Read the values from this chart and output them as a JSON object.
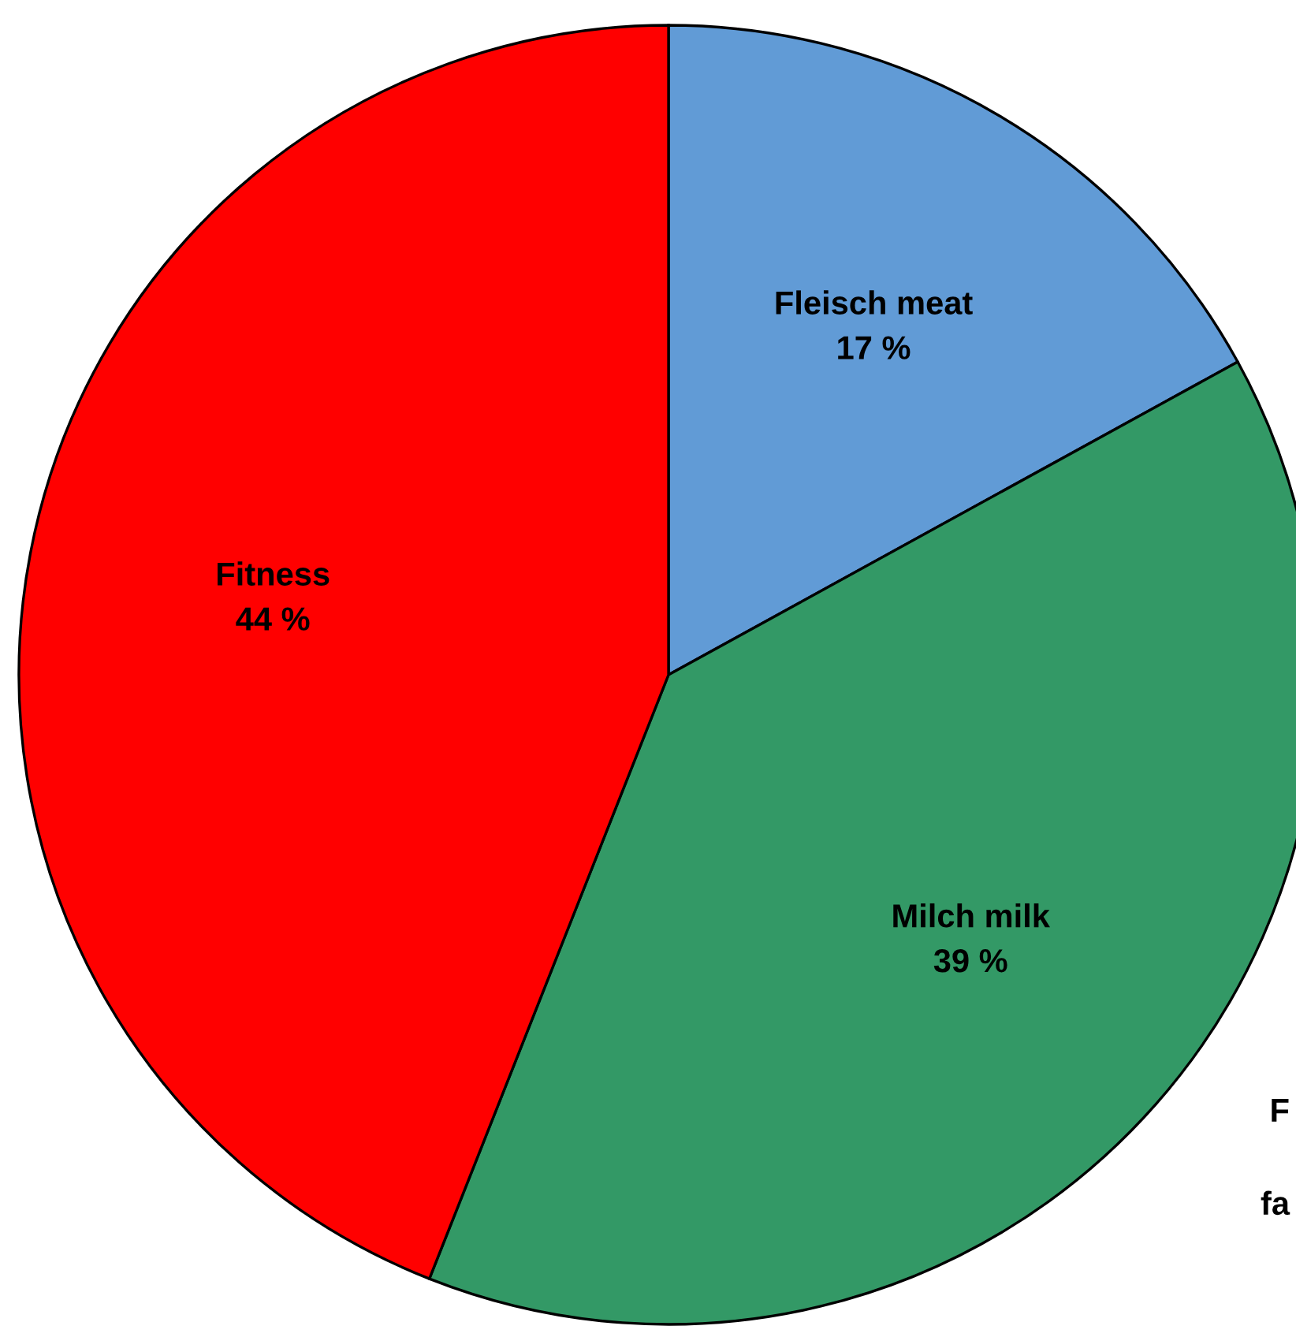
{
  "chart_data": {
    "type": "pie",
    "categories": [
      "Fleisch meat",
      "Milch milk",
      "Fitness"
    ],
    "values": [
      17,
      39,
      44
    ],
    "value_labels": [
      "17 %",
      "39 %",
      "44 %"
    ],
    "colors": [
      "#619bd6",
      "#339966",
      "#ff0000"
    ],
    "annotations": [
      "F",
      "fa"
    ],
    "legend": false
  }
}
